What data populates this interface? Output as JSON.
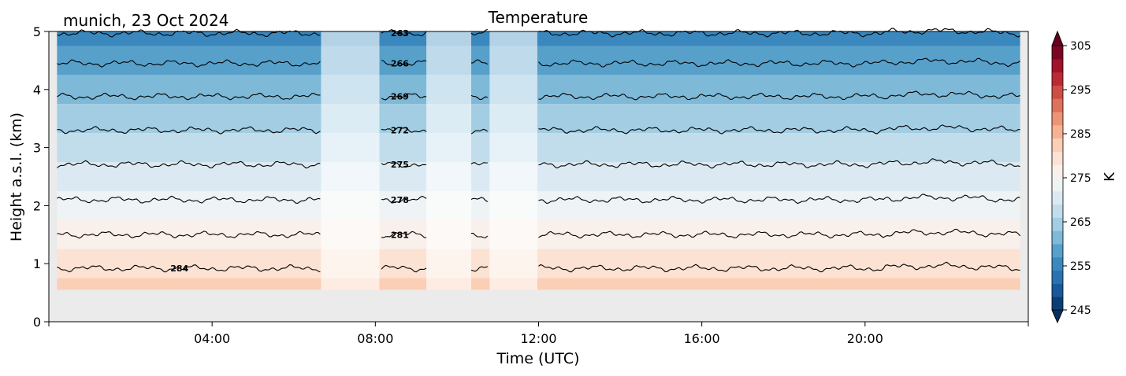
{
  "chart_data": {
    "type": "heatmap",
    "subtype": "filled-contour",
    "title": "Temperature",
    "subtitle": "munich, 23 Oct 2024",
    "xlabel": "Time (UTC)",
    "ylabel": "Height a.s.l. (km)",
    "xlim_hours": [
      0,
      24
    ],
    "ylim_km": [
      0,
      5
    ],
    "x_ticks": [
      "04:00",
      "08:00",
      "12:00",
      "16:00",
      "20:00"
    ],
    "x_tick_hours": [
      4,
      8,
      12,
      16,
      20
    ],
    "y_ticks": [
      0,
      1,
      2,
      3,
      4,
      5
    ],
    "grid": false,
    "colormap": "RdBu_r",
    "colorbar": {
      "label": "K",
      "min": 245,
      "max": 305,
      "ticks": [
        245,
        255,
        265,
        275,
        285,
        295,
        305
      ],
      "extend": "both",
      "levels_step_K": 3
    },
    "data_extent": {
      "x_hours": [
        0.2,
        23.8
      ],
      "y_km": [
        0.55,
        5.0
      ]
    },
    "surface_temperature_K": 285.5,
    "lapse_rate_K_per_km": -6.0,
    "contour_levels": [
      {
        "label": "263",
        "value": 263,
        "height_km": 4.97
      },
      {
        "label": "266",
        "value": 266,
        "height_km": 4.45
      },
      {
        "label": "269",
        "value": 269,
        "height_km": 3.88
      },
      {
        "label": "272",
        "value": 272,
        "height_km": 3.3
      },
      {
        "label": "275",
        "value": 275,
        "height_km": 2.71
      },
      {
        "label": "278",
        "value": 278,
        "height_km": 2.1
      },
      {
        "label": "281",
        "value": 281,
        "height_km": 1.5
      },
      {
        "label": "284",
        "value": 284,
        "height_km": 0.92
      }
    ],
    "contour_label_visible": "284",
    "gap_periods_hours": [
      [
        6.67,
        8.1
      ],
      [
        9.25,
        10.35
      ],
      [
        10.8,
        11.97
      ]
    ],
    "colors": {
      "no_data": "#ebebeb",
      "contour_line": "#000000"
    }
  }
}
